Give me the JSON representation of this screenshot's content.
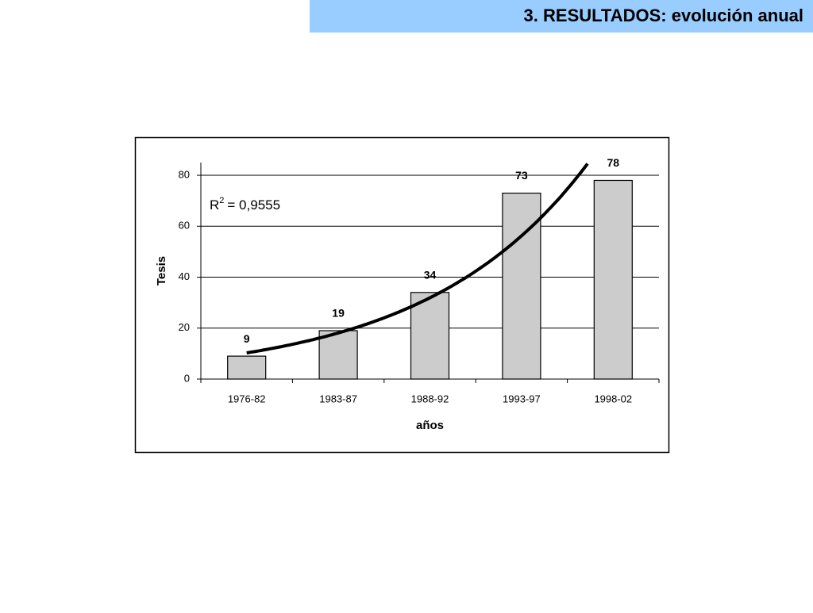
{
  "header": {
    "title": "3. RESULTADOS: evolución anual"
  },
  "chart_data": {
    "type": "bar",
    "categories": [
      "1976-82",
      "1983-87",
      "1988-92",
      "1993-97",
      "1998-02"
    ],
    "values": [
      9,
      19,
      34,
      73,
      78
    ],
    "color": "#cccccc",
    "x_label": "años",
    "y_label": "Tesis",
    "ylim": [
      0,
      85
    ],
    "yticks": [
      0,
      20,
      40,
      60,
      80
    ],
    "grid": true,
    "trendline": {
      "kind": "exponential",
      "label": "R",
      "superscript": "2",
      "text": "= 0,9555",
      "color": "#000000"
    }
  }
}
